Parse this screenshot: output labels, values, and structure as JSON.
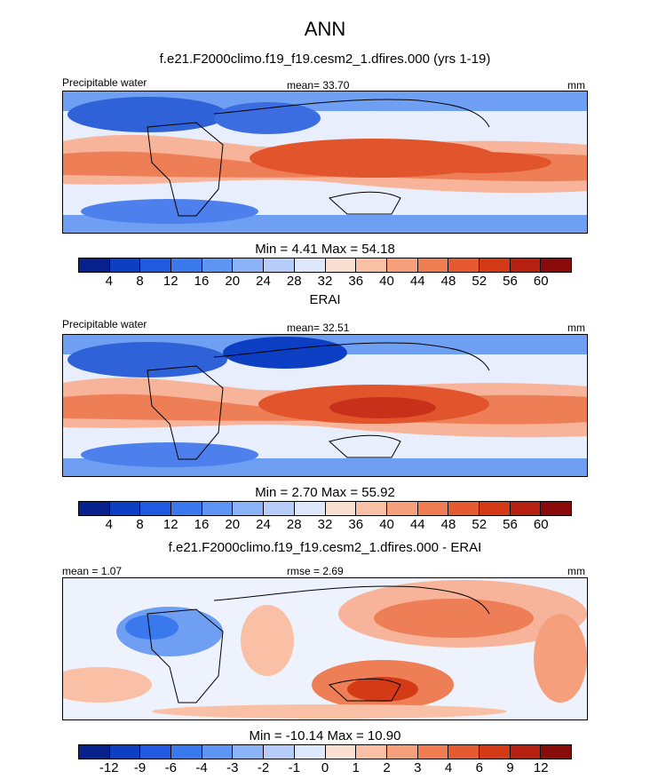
{
  "header": {
    "season": "ANN",
    "model_title": "f.e21.F2000climo.f19_f19.cesm2_1.dfires.000 (yrs 1-19)"
  },
  "panel1": {
    "left_label": "Precipitable water",
    "mean_label": "mean=  33.70",
    "units": "mm",
    "minmax": "Min =   4.41 Max =  54.18"
  },
  "panel2": {
    "title": "ERAI",
    "left_label": "Precipitable water",
    "mean_label": "mean=  32.51",
    "units": "mm",
    "minmax": "Min =   2.70 Max =  55.92"
  },
  "panel3": {
    "title": "f.e21.F2000climo.f19_f19.cesm2_1.dfires.000 - ERAI",
    "mean_label": "mean =   1.07",
    "rmse_label": "rmse =   2.69",
    "units": "mm",
    "minmax": "Min = -10.14 Max =  10.90"
  },
  "colorbar_abs": {
    "colors": [
      "#07228c",
      "#0d3fc4",
      "#1f5ae0",
      "#3a78ee",
      "#5e95f5",
      "#8bb3f8",
      "#b5cdf8",
      "#dde8fb",
      "#fbe0d2",
      "#f9c0a6",
      "#f69f7c",
      "#f07c52",
      "#e55a30",
      "#d43a16",
      "#b62010",
      "#8a0c0a"
    ],
    "labels": [
      "4",
      "8",
      "12",
      "16",
      "20",
      "24",
      "28",
      "32",
      "36",
      "40",
      "44",
      "48",
      "52",
      "56",
      "60"
    ]
  },
  "colorbar_diff": {
    "colors": [
      "#07228c",
      "#0d3fc4",
      "#1f5ae0",
      "#3a78ee",
      "#5e95f5",
      "#8bb3f8",
      "#b5cdf8",
      "#dde8fb",
      "#fbe0d2",
      "#f9c0a6",
      "#f69f7c",
      "#f07c52",
      "#e55a30",
      "#d43a16",
      "#b62010",
      "#8a0c0a"
    ],
    "labels": [
      "-12",
      "-9",
      "-6",
      "-4",
      "-3",
      "-2",
      "-1",
      "0",
      "1",
      "2",
      "3",
      "4",
      "6",
      "9",
      "12"
    ]
  }
}
